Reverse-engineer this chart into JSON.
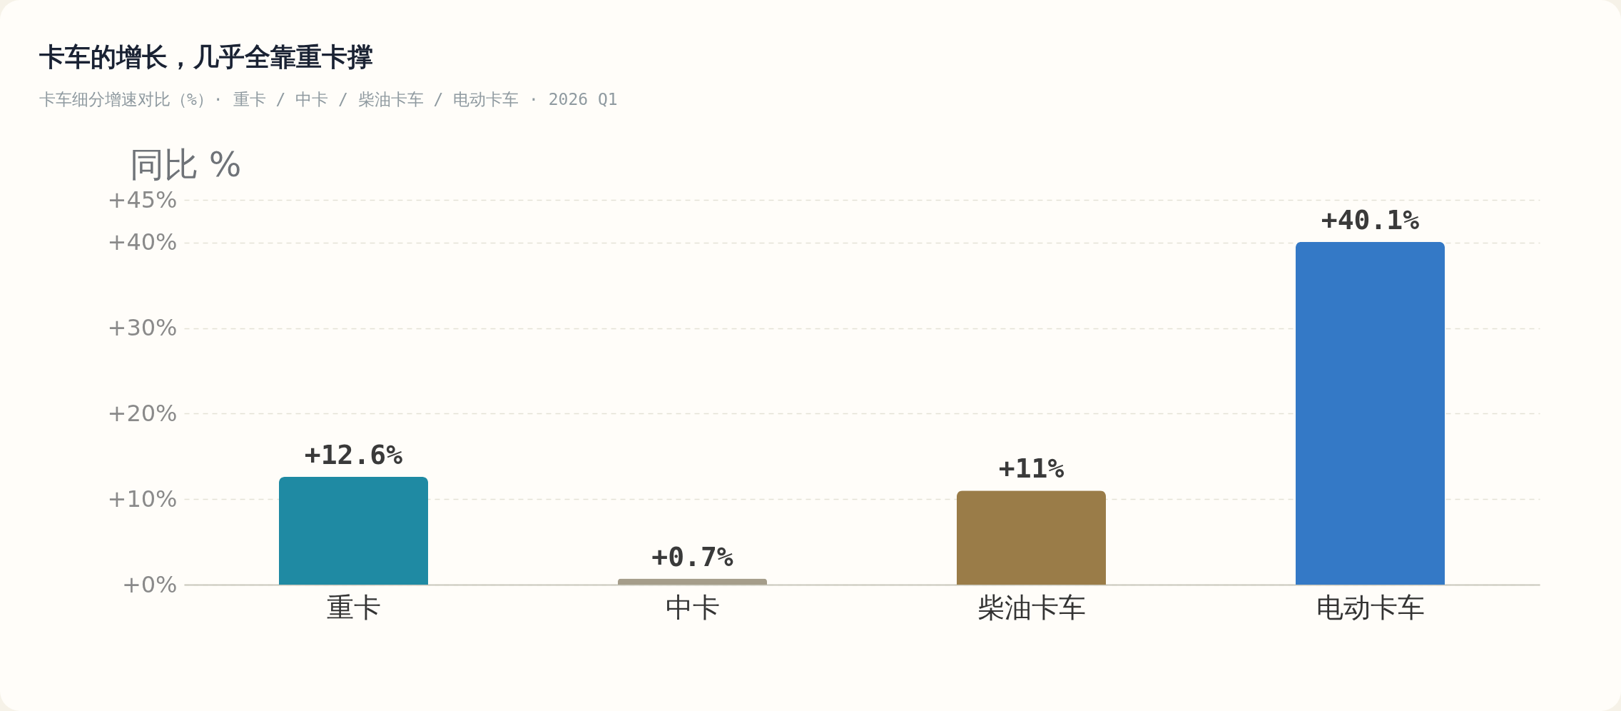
{
  "chart_data": {
    "type": "bar",
    "title": "卡车的增长，几乎全靠重卡撑",
    "subtitle": "卡车细分增速对比（%）· 重卡 / 中卡 / 柴油卡车 / 电动卡车 · 2026 Q1",
    "ylabel": "同比 %",
    "categories": [
      "重卡",
      "中卡",
      "柴油卡车",
      "电动卡车"
    ],
    "values": [
      12.6,
      0.7,
      11,
      40.1
    ],
    "colors": [
      "#1f8aa3",
      "#a59d8a",
      "#9a7c48",
      "#3479c6"
    ],
    "value_labels": [
      "+12.6%",
      "+0.7%",
      "+11%",
      "+40.1%"
    ],
    "ylim": [
      0,
      45
    ],
    "yticks": [
      {
        "value": 0,
        "label": "+0%"
      },
      {
        "value": 10,
        "label": "+10%"
      },
      {
        "value": 20,
        "label": "+20%"
      },
      {
        "value": 30,
        "label": "+30%"
      },
      {
        "value": 40,
        "label": "+40%"
      },
      {
        "value": 45,
        "label": "+45%"
      }
    ],
    "grid": "y",
    "legend": false
  }
}
